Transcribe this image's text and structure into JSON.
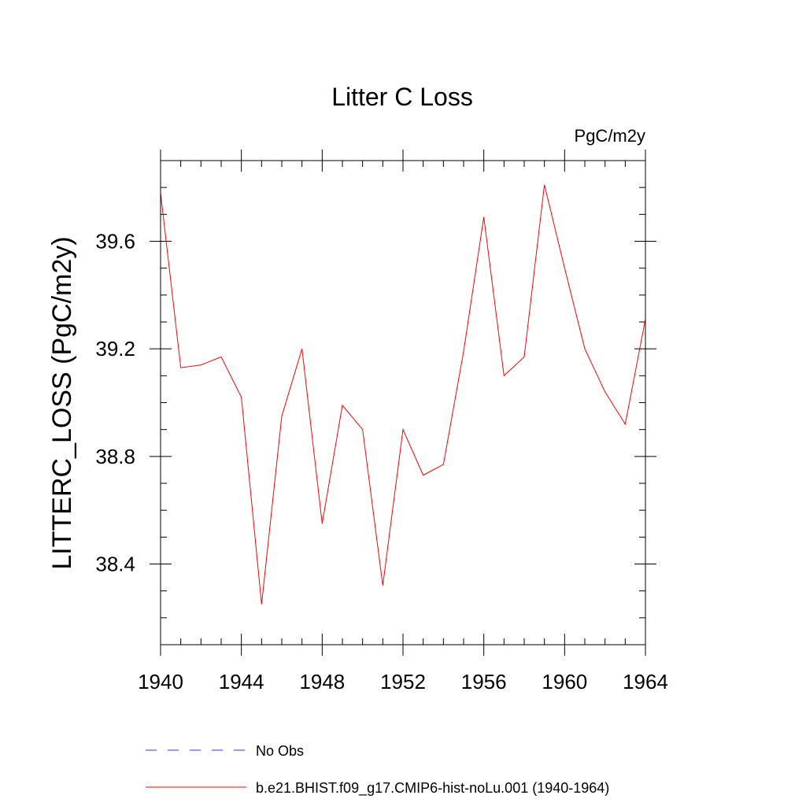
{
  "chart_data": {
    "type": "line",
    "title": "Litter C Loss",
    "units": "PgC/m2y",
    "xlabel": "",
    "ylabel": "LITTERC_LOSS  (PgC/m2y)",
    "xlim": [
      1940,
      1964
    ],
    "ylim": [
      38.1,
      39.9
    ],
    "x_ticks": [
      1940,
      1944,
      1948,
      1952,
      1956,
      1960,
      1964
    ],
    "y_ticks": [
      38.4,
      38.8,
      39.2,
      39.6
    ],
    "x_tick_labels": [
      "1940",
      "1944",
      "1948",
      "1952",
      "1956",
      "1960",
      "1964"
    ],
    "y_tick_labels": [
      "38.4",
      "38.8",
      "39.2",
      "39.6"
    ],
    "x_minor_step": 1,
    "y_minor_step": 0.1,
    "grid": false,
    "legend_position": "bottom",
    "x": [
      1940,
      1941,
      1942,
      1943,
      1944,
      1945,
      1946,
      1947,
      1948,
      1949,
      1950,
      1951,
      1952,
      1953,
      1954,
      1955,
      1956,
      1957,
      1958,
      1959,
      1960,
      1961,
      1962,
      1963,
      1964
    ],
    "series": [
      {
        "name": "b.e21.BHIST.f09_g17.CMIP6-hist-noLu.001 (1940-1964)",
        "color": "#ff0000",
        "dash": "solid",
        "values": [
          39.78,
          39.13,
          39.14,
          39.17,
          39.02,
          38.25,
          38.95,
          39.2,
          38.55,
          38.99,
          38.9,
          38.32,
          38.9,
          38.73,
          38.77,
          39.19,
          39.69,
          39.1,
          39.17,
          39.81,
          39.5,
          39.2,
          39.04,
          38.92,
          39.31
        ]
      }
    ],
    "legend": [
      {
        "label": "No Obs",
        "color": "#3333cc",
        "dash": "dashed"
      },
      {
        "label": "b.e21.BHIST.f09_g17.CMIP6-hist-noLu.001 (1940-1964)",
        "color": "#ff0000",
        "dash": "solid"
      }
    ]
  }
}
